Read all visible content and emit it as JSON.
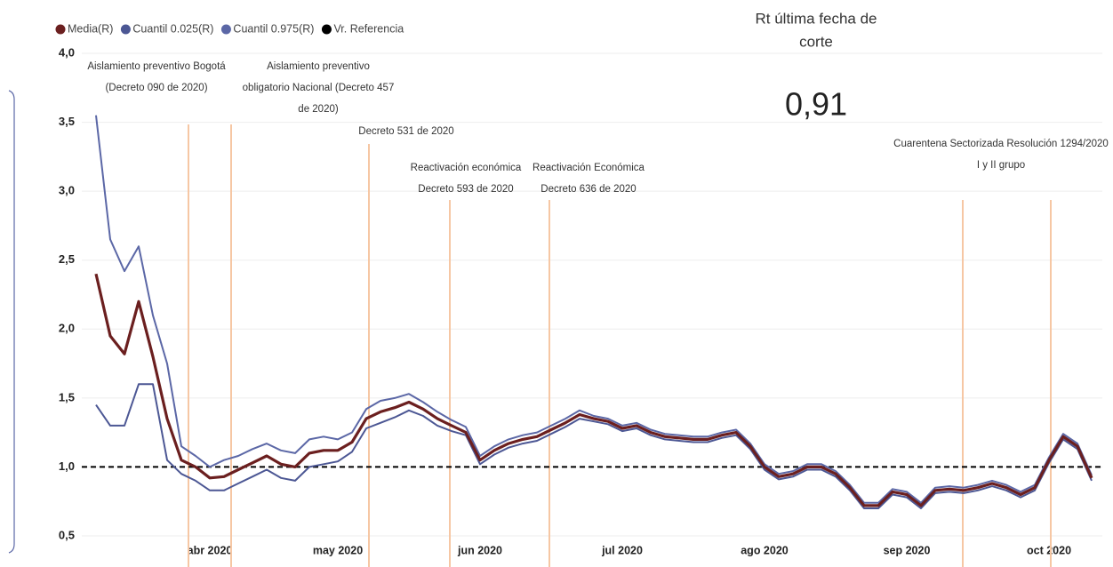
{
  "chart_data": {
    "type": "line",
    "categories": [
      null,
      null,
      null,
      null,
      null,
      null,
      null,
      null,
      "abr 2020",
      null,
      null,
      null,
      null,
      null,
      null,
      null,
      null,
      "may 2020",
      null,
      null,
      null,
      null,
      null,
      null,
      null,
      null,
      null,
      "jun 2020",
      null,
      null,
      null,
      null,
      null,
      null,
      null,
      null,
      null,
      "jul 2020",
      null,
      null,
      null,
      null,
      null,
      null,
      null,
      null,
      null,
      "ago 2020",
      null,
      null,
      null,
      null,
      null,
      null,
      null,
      null,
      null,
      "sep 2020",
      null,
      null,
      null,
      null,
      null,
      null,
      null,
      null,
      null,
      "oct 2020",
      null,
      null,
      null
    ],
    "series": [
      {
        "name": "Media(R)",
        "color": "#6b1f1f",
        "values": [
          2.4,
          1.95,
          1.82,
          2.2,
          1.8,
          1.35,
          1.05,
          1.0,
          0.92,
          0.93,
          0.98,
          1.03,
          1.08,
          1.02,
          1.0,
          1.1,
          1.12,
          1.12,
          1.18,
          1.35,
          1.4,
          1.43,
          1.47,
          1.42,
          1.35,
          1.3,
          1.25,
          1.05,
          1.12,
          1.17,
          1.2,
          1.22,
          1.27,
          1.32,
          1.38,
          1.35,
          1.33,
          1.28,
          1.3,
          1.25,
          1.22,
          1.21,
          1.2,
          1.2,
          1.23,
          1.25,
          1.15,
          1.0,
          0.93,
          0.95,
          1.0,
          1.0,
          0.95,
          0.85,
          0.72,
          0.72,
          0.82,
          0.8,
          0.72,
          0.83,
          0.84,
          0.83,
          0.85,
          0.88,
          0.85,
          0.8,
          0.85,
          1.05,
          1.22,
          1.15,
          0.92
        ]
      },
      {
        "name": "Cuantil 0.025(R)",
        "color": "#4c5794",
        "values": [
          1.45,
          1.3,
          1.3,
          1.6,
          1.6,
          1.05,
          0.95,
          0.9,
          0.83,
          0.83,
          0.88,
          0.93,
          0.98,
          0.92,
          0.9,
          1.0,
          1.02,
          1.04,
          1.11,
          1.28,
          1.32,
          1.36,
          1.41,
          1.37,
          1.3,
          1.26,
          1.23,
          1.02,
          1.09,
          1.14,
          1.17,
          1.19,
          1.24,
          1.29,
          1.35,
          1.33,
          1.31,
          1.26,
          1.28,
          1.23,
          1.2,
          1.19,
          1.18,
          1.18,
          1.21,
          1.23,
          1.13,
          0.98,
          0.91,
          0.93,
          0.98,
          0.98,
          0.93,
          0.83,
          0.7,
          0.7,
          0.8,
          0.78,
          0.7,
          0.81,
          0.82,
          0.81,
          0.83,
          0.86,
          0.83,
          0.78,
          0.83,
          1.03,
          1.2,
          1.13,
          0.9
        ]
      },
      {
        "name": "Cuantil 0.975(R)",
        "color": "#5b67a6",
        "values": [
          3.55,
          2.65,
          2.42,
          2.6,
          2.1,
          1.75,
          1.15,
          1.08,
          1.0,
          1.05,
          1.08,
          1.13,
          1.17,
          1.12,
          1.1,
          1.2,
          1.22,
          1.2,
          1.25,
          1.42,
          1.48,
          1.5,
          1.53,
          1.47,
          1.4,
          1.34,
          1.29,
          1.08,
          1.15,
          1.2,
          1.23,
          1.25,
          1.3,
          1.35,
          1.41,
          1.37,
          1.35,
          1.3,
          1.32,
          1.27,
          1.24,
          1.23,
          1.22,
          1.22,
          1.25,
          1.27,
          1.17,
          1.02,
          0.95,
          0.97,
          1.02,
          1.02,
          0.97,
          0.87,
          0.74,
          0.74,
          0.84,
          0.82,
          0.74,
          0.85,
          0.86,
          0.85,
          0.87,
          0.9,
          0.87,
          0.82,
          0.87,
          1.07,
          1.24,
          1.17,
          0.94
        ]
      }
    ],
    "reference": {
      "name": "Vr. Referencia",
      "color": "#000000",
      "value": 1
    },
    "ylim": [
      0.5,
      4.0
    ],
    "yticks": [
      {
        "value": 0.5,
        "label": "0,5"
      },
      {
        "value": 1.0,
        "label": "1,0"
      },
      {
        "value": 1.5,
        "label": "1,5"
      },
      {
        "value": 2.0,
        "label": "2,0"
      },
      {
        "value": 2.5,
        "label": "2,5"
      },
      {
        "value": 3.0,
        "label": "3,0"
      },
      {
        "value": 3.5,
        "label": "3,5"
      },
      {
        "value": 4.0,
        "label": "4,0"
      }
    ],
    "grid": true,
    "annotations": [
      {
        "lines": [
          "Aislamiento preventivo Bogotá",
          "(Decreto 090 de 2020)"
        ]
      },
      {
        "lines": [
          "Aislamiento preventivo",
          "obligatorio Nacional (Decreto 457",
          "de 2020)"
        ]
      },
      {
        "lines": [
          "Decreto 531 de 2020"
        ]
      },
      {
        "lines": [
          "Reactivación económica",
          "Decreto 593 de 2020"
        ]
      },
      {
        "lines": [
          "Reactivación Económica",
          "Decreto 636 de 2020"
        ]
      },
      {
        "lines": [
          "Cuarentena Sectorizada Resolución 1294/2020",
          "I y II grupo"
        ]
      }
    ]
  },
  "kpi": {
    "title": [
      "Rt última fecha de",
      "corte"
    ],
    "value": 0.91,
    "label": "0,91"
  }
}
